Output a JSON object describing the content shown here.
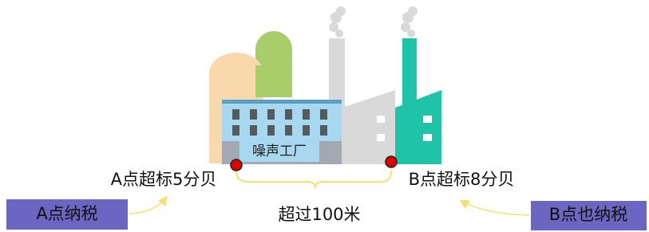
{
  "factory": {
    "label": "噪声工厂"
  },
  "points": [
    {
      "label": "A点超标5分贝"
    },
    {
      "label": "B点超标8分贝"
    }
  ],
  "distance": "超过100米",
  "boxes": [
    {
      "label": "A点纳税"
    },
    {
      "label": "B点也纳税"
    }
  ]
}
